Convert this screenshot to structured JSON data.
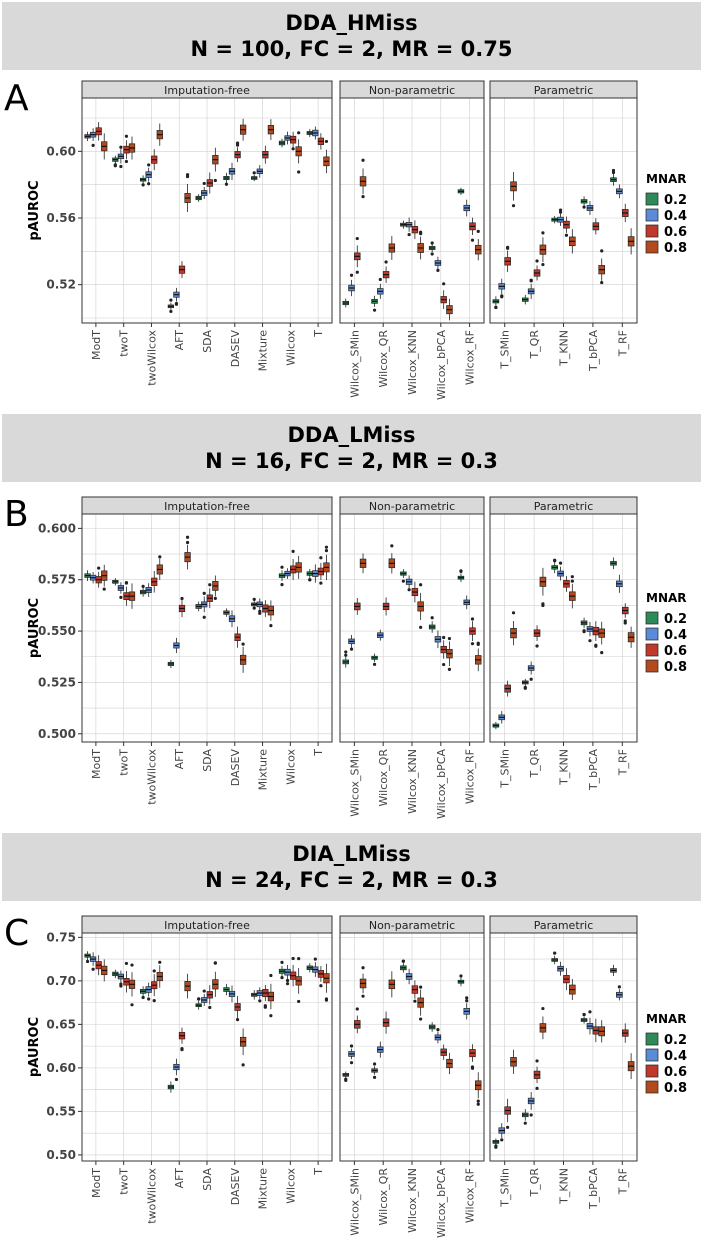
{
  "chart_data": [
    {
      "type": "box",
      "panel_letter": "A",
      "title": [
        "DDA_HMiss",
        "N = 100, FC = 2, MR = 0.75"
      ],
      "ylabel": "pAUROC",
      "ylim": [
        0.497,
        0.632
      ],
      "yticks": [
        0.52,
        0.56,
        0.6
      ],
      "legend": {
        "title": "MNAR",
        "entries": [
          "0.2",
          "0.4",
          "0.6",
          "0.8"
        ]
      },
      "facets": [
        {
          "name": "Imputation-free",
          "categories": [
            "ModT",
            "twoT",
            "twoWilcox",
            "AFT",
            "SDA",
            "DASEV",
            "Mixture",
            "Wilcox",
            "T"
          ],
          "medians": [
            [
              0.609,
              0.61,
              0.612,
              0.603
            ],
            [
              0.595,
              0.597,
              0.601,
              0.602
            ],
            [
              0.583,
              0.586,
              0.595,
              0.61
            ],
            [
              0.507,
              0.514,
              0.529,
              0.572
            ],
            [
              0.572,
              0.575,
              0.581,
              0.595
            ],
            [
              0.584,
              0.588,
              0.598,
              0.613
            ],
            [
              0.584,
              0.588,
              0.598,
              0.613
            ],
            [
              0.605,
              0.608,
              0.607,
              0.6
            ],
            [
              0.611,
              0.611,
              0.606,
              0.594
            ]
          ]
        },
        {
          "name": "Non-parametric",
          "categories": [
            "Wilcox_SMin",
            "Wilcox_QR",
            "Wilcox_KNN",
            "Wilcox_bPCA",
            "Wilcox_RF"
          ],
          "medians": [
            [
              0.509,
              0.518,
              0.537,
              0.582
            ],
            [
              0.51,
              0.516,
              0.526,
              0.542
            ],
            [
              0.556,
              0.556,
              0.553,
              0.542
            ],
            [
              0.542,
              0.533,
              0.511,
              0.505
            ],
            [
              0.576,
              0.566,
              0.555,
              0.541
            ]
          ]
        },
        {
          "name": "Parametric",
          "categories": [
            "T_SMin",
            "T_QR",
            "T_KNN",
            "T_bPCA",
            "T_RF"
          ],
          "medians": [
            [
              0.51,
              0.519,
              0.534,
              0.579
            ],
            [
              0.511,
              0.516,
              0.527,
              0.541
            ],
            [
              0.559,
              0.559,
              0.556,
              0.546
            ],
            [
              0.57,
              0.566,
              0.555,
              0.529
            ],
            [
              0.583,
              0.576,
              0.563,
              0.546
            ]
          ]
        }
      ]
    },
    {
      "type": "box",
      "panel_letter": "B",
      "title": [
        "DDA_LMiss",
        "N = 16, FC = 2, MR = 0.3"
      ],
      "ylabel": "pAUROC",
      "ylim": [
        0.496,
        0.607
      ],
      "yticks": [
        0.5,
        0.525,
        0.55,
        0.575,
        0.6
      ],
      "legend": {
        "title": "MNAR",
        "entries": [
          "0.2",
          "0.4",
          "0.6",
          "0.8"
        ]
      },
      "facets": [
        {
          "name": "Imputation-free",
          "categories": [
            "ModT",
            "twoT",
            "twoWilcox",
            "AFT",
            "SDA",
            "DASEV",
            "Mixture",
            "Wilcox",
            "T"
          ],
          "medians": [
            [
              0.577,
              0.576,
              0.575,
              0.577
            ],
            [
              0.574,
              0.571,
              0.567,
              0.567
            ],
            [
              0.569,
              0.57,
              0.574,
              0.58
            ],
            [
              0.534,
              0.543,
              0.561,
              0.586
            ],
            [
              0.562,
              0.563,
              0.566,
              0.572
            ],
            [
              0.559,
              0.556,
              0.547,
              0.536
            ],
            [
              0.563,
              0.563,
              0.561,
              0.56
            ],
            [
              0.577,
              0.578,
              0.58,
              0.581
            ],
            [
              0.578,
              0.578,
              0.579,
              0.581
            ]
          ]
        },
        {
          "name": "Non-parametric",
          "categories": [
            "Wilcox_SMin",
            "Wilcox_QR",
            "Wilcox_KNN",
            "Wilcox_bPCA",
            "Wilcox_RF"
          ],
          "medians": [
            [
              0.535,
              0.545,
              0.562,
              0.583
            ],
            [
              0.537,
              0.548,
              0.562,
              0.583
            ],
            [
              0.578,
              0.574,
              0.569,
              0.562
            ],
            [
              0.552,
              0.546,
              0.541,
              0.539
            ],
            [
              0.576,
              0.564,
              0.55,
              0.536
            ]
          ]
        },
        {
          "name": "Parametric",
          "categories": [
            "T_SMin",
            "T_QR",
            "T_KNN",
            "T_bPCA",
            "T_RF"
          ],
          "medians": [
            [
              0.504,
              0.508,
              0.522,
              0.549
            ],
            [
              0.525,
              0.532,
              0.549,
              0.574
            ],
            [
              0.581,
              0.578,
              0.573,
              0.567
            ],
            [
              0.554,
              0.551,
              0.55,
              0.549
            ],
            [
              0.583,
              0.573,
              0.56,
              0.547
            ]
          ]
        }
      ]
    },
    {
      "type": "box",
      "panel_letter": "C",
      "title": [
        "DIA_LMiss",
        "N = 24, FC = 2, MR = 0.3"
      ],
      "ylabel": "pAUROC",
      "ylim": [
        0.493,
        0.755
      ],
      "yticks": [
        0.5,
        0.55,
        0.6,
        0.65,
        0.7,
        0.75
      ],
      "legend": {
        "title": "MNAR",
        "entries": [
          "0.2",
          "0.4",
          "0.6",
          "0.8"
        ]
      },
      "facets": [
        {
          "name": "Imputation-free",
          "categories": [
            "ModT",
            "twoT",
            "twoWilcox",
            "AFT",
            "SDA",
            "DASEV",
            "Mixture",
            "Wilcox",
            "T"
          ],
          "medians": [
            [
              0.729,
              0.725,
              0.718,
              0.712
            ],
            [
              0.708,
              0.705,
              0.699,
              0.696
            ],
            [
              0.688,
              0.69,
              0.695,
              0.705
            ],
            [
              0.578,
              0.601,
              0.637,
              0.694
            ],
            [
              0.672,
              0.678,
              0.684,
              0.696
            ],
            [
              0.69,
              0.685,
              0.67,
              0.63
            ],
            [
              0.684,
              0.686,
              0.686,
              0.682
            ],
            [
              0.711,
              0.71,
              0.706,
              0.7
            ],
            [
              0.715,
              0.713,
              0.708,
              0.703
            ]
          ]
        },
        {
          "name": "Non-parametric",
          "categories": [
            "Wilcox_SMin",
            "Wilcox_QR",
            "Wilcox_KNN",
            "Wilcox_bPCA",
            "Wilcox_RF"
          ],
          "medians": [
            [
              0.592,
              0.616,
              0.65,
              0.697
            ],
            [
              0.597,
              0.621,
              0.652,
              0.696
            ],
            [
              0.715,
              0.705,
              0.69,
              0.675
            ],
            [
              0.647,
              0.635,
              0.618,
              0.605
            ],
            [
              0.699,
              0.665,
              0.617,
              0.58
            ]
          ]
        },
        {
          "name": "Parametric",
          "categories": [
            "T_SMin",
            "T_QR",
            "T_KNN",
            "T_bPCA",
            "T_RF"
          ],
          "medians": [
            [
              0.515,
              0.528,
              0.551,
              0.607
            ],
            [
              0.546,
              0.562,
              0.592,
              0.646
            ],
            [
              0.724,
              0.714,
              0.702,
              0.69
            ],
            [
              0.655,
              0.648,
              0.643,
              0.642
            ],
            [
              0.712,
              0.684,
              0.64,
              0.602
            ]
          ]
        }
      ]
    }
  ],
  "colors": {
    "mnar": [
      "#2E8B57",
      "#5B8BD6",
      "#C0392B",
      "#B34A1E"
    ],
    "strip": "#d9d9d9",
    "grid": "#d0d0d0"
  }
}
